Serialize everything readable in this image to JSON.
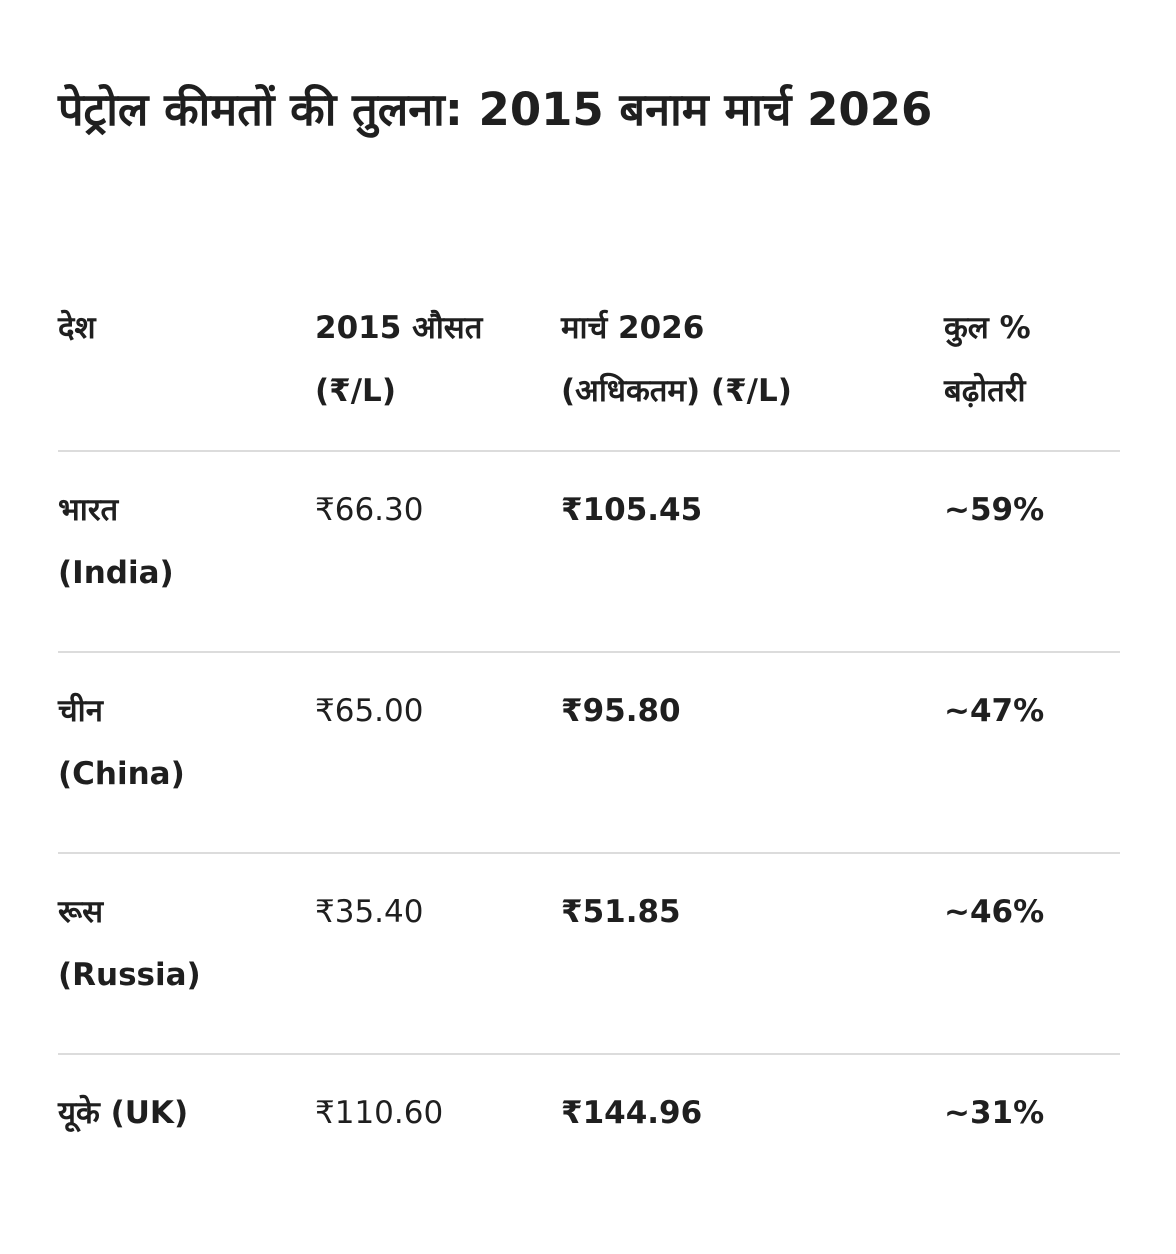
{
  "title": "पेट्रोल कीमतों की तुलना: 2015 बनाम मार्च 2026",
  "table": {
    "headers": [
      [
        "देश"
      ],
      [
        "2015 औसत",
        "(₹/L)"
      ],
      [
        "मार्च 2026",
        "(अधिकतम) (₹/L)"
      ],
      [
        "कुल %",
        "बढ़ोतरी"
      ]
    ],
    "rows": [
      {
        "country": [
          "भारत",
          "(India)"
        ],
        "avg_2015": "₹66.30",
        "max_2026": "₹105.45",
        "increase": "~59%"
      },
      {
        "country": [
          "चीन",
          "(China)"
        ],
        "avg_2015": "₹65.00",
        "max_2026": "₹95.80",
        "increase": "~47%"
      },
      {
        "country": [
          "रूस",
          "(Russia)"
        ],
        "avg_2015": "₹35.40",
        "max_2026": "₹51.85",
        "increase": "~46%"
      },
      {
        "country": [
          "यूके (UK)"
        ],
        "avg_2015": "₹110.60",
        "max_2026": "₹144.96",
        "increase": "~31%"
      }
    ]
  },
  "colors": {
    "text": "#1f1f1f",
    "divider": "#dcdcdc",
    "background": "#ffffff"
  }
}
